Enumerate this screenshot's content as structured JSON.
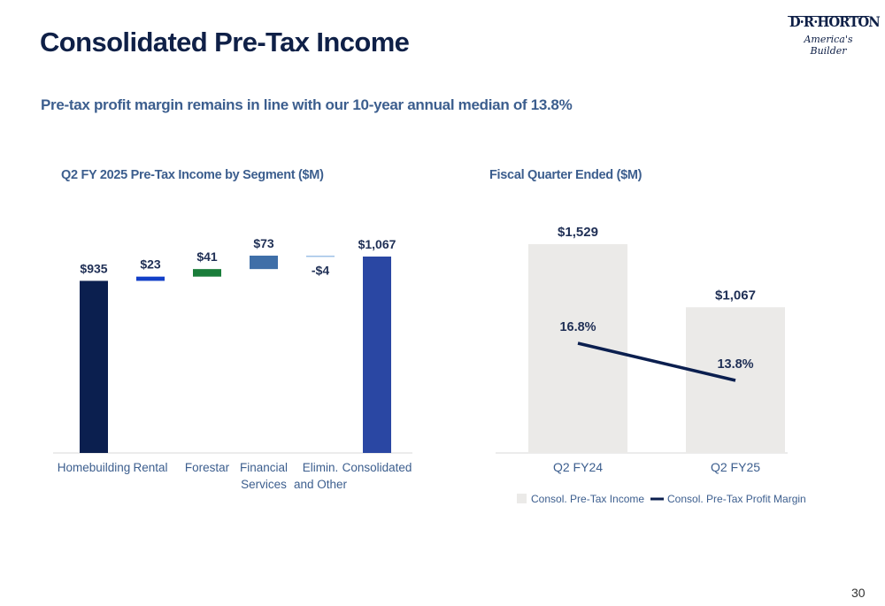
{
  "header": {
    "title": "Consolidated Pre-Tax Income",
    "subtitle": "Pre-tax profit margin remains in line with our 10-year annual median of 13.8%"
  },
  "logo": {
    "name": "D·R·HORTON",
    "tagline": "America's Builder"
  },
  "page_number": "30",
  "colors": {
    "homebuilding": "#0b1f4f",
    "rental": "#1340c8",
    "forestar": "#1a7d3a",
    "financial_services": "#3f6fa8",
    "elimin": "#9ec2e6",
    "consolidated": "#2a47a3",
    "bar_gray": "#ebeae8",
    "line": "#0b1f4f"
  },
  "chart_data": [
    {
      "type": "bar",
      "subtype": "waterfall",
      "title": "Q2 FY 2025 Pre-Tax Income by Segment ($M)",
      "categories": [
        "Homebuilding",
        "Rental",
        "Forestar",
        "Financial Services",
        "Elimin. and Other",
        "Consolidated"
      ],
      "category_lines": [
        [
          "Homebuilding"
        ],
        [
          "Rental"
        ],
        [
          "Forestar"
        ],
        [
          "Financial",
          "Services"
        ],
        [
          "Elimin.",
          "and Other"
        ],
        [
          "Consolidated"
        ]
      ],
      "values": [
        935,
        23,
        41,
        73,
        -4,
        1067
      ],
      "data_labels": [
        "$935",
        "$23",
        "$41",
        "$73",
        "-$4",
        "$1,067"
      ],
      "totals": [
        true,
        false,
        false,
        false,
        false,
        true
      ],
      "ylim": [
        0,
        1100
      ],
      "grid": false,
      "legend": "none"
    },
    {
      "type": "bar",
      "subtype": "bar-line combo",
      "title": "Fiscal Quarter Ended ($M)",
      "categories": [
        "Q2 FY24",
        "Q2 FY25"
      ],
      "series": [
        {
          "name": "Consol. Pre-Tax Income",
          "type": "bar",
          "values": [
            1529,
            1067
          ],
          "labels": [
            "$1,529",
            "$1,067"
          ]
        },
        {
          "name": "Consol. Pre-Tax Profit Margin",
          "type": "line",
          "values": [
            16.8,
            13.8
          ],
          "labels": [
            "16.8%",
            "13.8%"
          ]
        }
      ],
      "ylim": [
        0,
        1600
      ],
      "y2lim": [
        0,
        30
      ],
      "grid": false,
      "legend": "bottom"
    }
  ]
}
